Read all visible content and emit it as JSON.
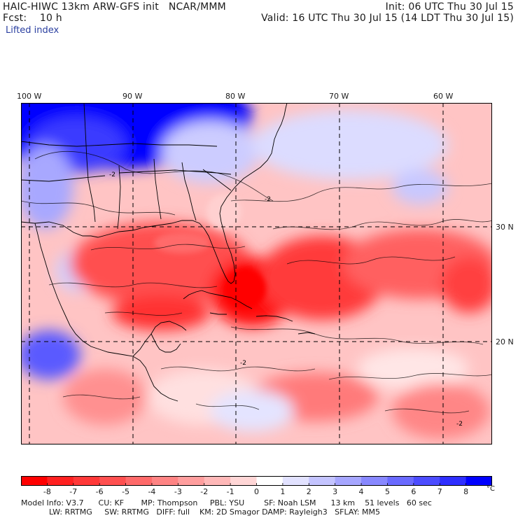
{
  "header": {
    "line1_left": "HAIC-HIWC 13km ARW-GFS init   NCAR/MMM",
    "line1_right": "Init: 06 UTC Thu 30 Jul 15",
    "line2_left": "Fcst:    10 h",
    "line2_right": "Valid: 16 UTC Thu 30 Jul 15 (14 LDT Thu 30 Jul 15)",
    "field_name": "Lifted index"
  },
  "map": {
    "lon_labels": [
      "100 W",
      "90 W",
      "80 W",
      "70 W",
      "60 W"
    ],
    "lat_labels": [
      "30 N",
      "20 N"
    ],
    "contour_labels": [
      "-2",
      "-2",
      "-2",
      "-2"
    ]
  },
  "colorbar": {
    "labels": [
      "-8",
      "-7",
      "-6",
      "-5",
      "-4",
      "-3",
      "-2",
      "-1",
      "0",
      "1",
      "2",
      "3",
      "4",
      "5",
      "6",
      "7",
      "8"
    ],
    "unit": "°C",
    "colors": [
      "#ff0000",
      "#ff2020",
      "#ff3838",
      "#ff5050",
      "#ff6a6a",
      "#ff8484",
      "#ff9e9e",
      "#ffb8b8",
      "#ffd6d6",
      "#ffffff",
      "#e2e2ff",
      "#c4c4ff",
      "#a6a6ff",
      "#8888ff",
      "#6a6aff",
      "#4c4cff",
      "#2e2eff",
      "#0000ff"
    ]
  },
  "model_info": {
    "line1": "Model Info: V3.7      CU: KF       MP: Thompson     PBL: YSU        SF: Noah LSM      13 km    51 levels   60 sec",
    "line2": "LW: RRTMG     SW: RRTMG   DIFF: full    KM: 2D Smagor DAMP: Rayleigh3   SFLAY: MM5"
  }
}
